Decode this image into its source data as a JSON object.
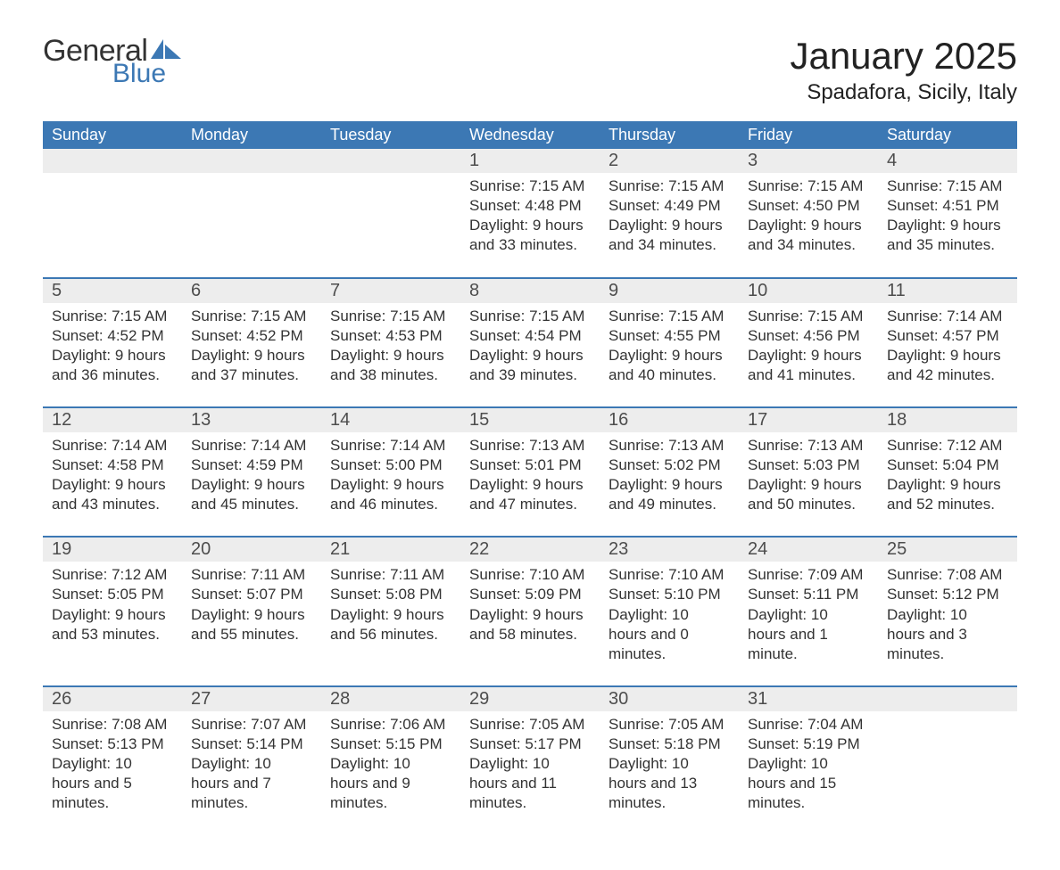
{
  "logo": {
    "line1": "General",
    "line2": "Blue",
    "shape_color": "#3c78b4"
  },
  "title": "January 2025",
  "location": "Spadafora, Sicily, Italy",
  "colors": {
    "header_bg": "#3c78b4",
    "header_text": "#ffffff",
    "daynum_bg": "#ededed",
    "text": "#333333",
    "week_divider": "#3c78b4",
    "background": "#ffffff"
  },
  "daynames": [
    "Sunday",
    "Monday",
    "Tuesday",
    "Wednesday",
    "Thursday",
    "Friday",
    "Saturday"
  ],
  "weeks": [
    {
      "cells": [
        {
          "num": "",
          "lines": []
        },
        {
          "num": "",
          "lines": []
        },
        {
          "num": "",
          "lines": []
        },
        {
          "num": "1",
          "lines": [
            "Sunrise: 7:15 AM",
            "Sunset: 4:48 PM",
            "Daylight: 9 hours and 33 minutes."
          ]
        },
        {
          "num": "2",
          "lines": [
            "Sunrise: 7:15 AM",
            "Sunset: 4:49 PM",
            "Daylight: 9 hours and 34 minutes."
          ]
        },
        {
          "num": "3",
          "lines": [
            "Sunrise: 7:15 AM",
            "Sunset: 4:50 PM",
            "Daylight: 9 hours and 34 minutes."
          ]
        },
        {
          "num": "4",
          "lines": [
            "Sunrise: 7:15 AM",
            "Sunset: 4:51 PM",
            "Daylight: 9 hours and 35 minutes."
          ]
        }
      ]
    },
    {
      "cells": [
        {
          "num": "5",
          "lines": [
            "Sunrise: 7:15 AM",
            "Sunset: 4:52 PM",
            "Daylight: 9 hours and 36 minutes."
          ]
        },
        {
          "num": "6",
          "lines": [
            "Sunrise: 7:15 AM",
            "Sunset: 4:52 PM",
            "Daylight: 9 hours and 37 minutes."
          ]
        },
        {
          "num": "7",
          "lines": [
            "Sunrise: 7:15 AM",
            "Sunset: 4:53 PM",
            "Daylight: 9 hours and 38 minutes."
          ]
        },
        {
          "num": "8",
          "lines": [
            "Sunrise: 7:15 AM",
            "Sunset: 4:54 PM",
            "Daylight: 9 hours and 39 minutes."
          ]
        },
        {
          "num": "9",
          "lines": [
            "Sunrise: 7:15 AM",
            "Sunset: 4:55 PM",
            "Daylight: 9 hours and 40 minutes."
          ]
        },
        {
          "num": "10",
          "lines": [
            "Sunrise: 7:15 AM",
            "Sunset: 4:56 PM",
            "Daylight: 9 hours and 41 minutes."
          ]
        },
        {
          "num": "11",
          "lines": [
            "Sunrise: 7:14 AM",
            "Sunset: 4:57 PM",
            "Daylight: 9 hours and 42 minutes."
          ]
        }
      ]
    },
    {
      "cells": [
        {
          "num": "12",
          "lines": [
            "Sunrise: 7:14 AM",
            "Sunset: 4:58 PM",
            "Daylight: 9 hours and 43 minutes."
          ]
        },
        {
          "num": "13",
          "lines": [
            "Sunrise: 7:14 AM",
            "Sunset: 4:59 PM",
            "Daylight: 9 hours and 45 minutes."
          ]
        },
        {
          "num": "14",
          "lines": [
            "Sunrise: 7:14 AM",
            "Sunset: 5:00 PM",
            "Daylight: 9 hours and 46 minutes."
          ]
        },
        {
          "num": "15",
          "lines": [
            "Sunrise: 7:13 AM",
            "Sunset: 5:01 PM",
            "Daylight: 9 hours and 47 minutes."
          ]
        },
        {
          "num": "16",
          "lines": [
            "Sunrise: 7:13 AM",
            "Sunset: 5:02 PM",
            "Daylight: 9 hours and 49 minutes."
          ]
        },
        {
          "num": "17",
          "lines": [
            "Sunrise: 7:13 AM",
            "Sunset: 5:03 PM",
            "Daylight: 9 hours and 50 minutes."
          ]
        },
        {
          "num": "18",
          "lines": [
            "Sunrise: 7:12 AM",
            "Sunset: 5:04 PM",
            "Daylight: 9 hours and 52 minutes."
          ]
        }
      ]
    },
    {
      "cells": [
        {
          "num": "19",
          "lines": [
            "Sunrise: 7:12 AM",
            "Sunset: 5:05 PM",
            "Daylight: 9 hours and 53 minutes."
          ]
        },
        {
          "num": "20",
          "lines": [
            "Sunrise: 7:11 AM",
            "Sunset: 5:07 PM",
            "Daylight: 9 hours and 55 minutes."
          ]
        },
        {
          "num": "21",
          "lines": [
            "Sunrise: 7:11 AM",
            "Sunset: 5:08 PM",
            "Daylight: 9 hours and 56 minutes."
          ]
        },
        {
          "num": "22",
          "lines": [
            "Sunrise: 7:10 AM",
            "Sunset: 5:09 PM",
            "Daylight: 9 hours and 58 minutes."
          ]
        },
        {
          "num": "23",
          "lines": [
            "Sunrise: 7:10 AM",
            "Sunset: 5:10 PM",
            "Daylight: 10 hours and 0 minutes."
          ]
        },
        {
          "num": "24",
          "lines": [
            "Sunrise: 7:09 AM",
            "Sunset: 5:11 PM",
            "Daylight: 10 hours and 1 minute."
          ]
        },
        {
          "num": "25",
          "lines": [
            "Sunrise: 7:08 AM",
            "Sunset: 5:12 PM",
            "Daylight: 10 hours and 3 minutes."
          ]
        }
      ]
    },
    {
      "cells": [
        {
          "num": "26",
          "lines": [
            "Sunrise: 7:08 AM",
            "Sunset: 5:13 PM",
            "Daylight: 10 hours and 5 minutes."
          ]
        },
        {
          "num": "27",
          "lines": [
            "Sunrise: 7:07 AM",
            "Sunset: 5:14 PM",
            "Daylight: 10 hours and 7 minutes."
          ]
        },
        {
          "num": "28",
          "lines": [
            "Sunrise: 7:06 AM",
            "Sunset: 5:15 PM",
            "Daylight: 10 hours and 9 minutes."
          ]
        },
        {
          "num": "29",
          "lines": [
            "Sunrise: 7:05 AM",
            "Sunset: 5:17 PM",
            "Daylight: 10 hours and 11 minutes."
          ]
        },
        {
          "num": "30",
          "lines": [
            "Sunrise: 7:05 AM",
            "Sunset: 5:18 PM",
            "Daylight: 10 hours and 13 minutes."
          ]
        },
        {
          "num": "31",
          "lines": [
            "Sunrise: 7:04 AM",
            "Sunset: 5:19 PM",
            "Daylight: 10 hours and 15 minutes."
          ]
        },
        {
          "num": "",
          "lines": []
        }
      ]
    }
  ]
}
